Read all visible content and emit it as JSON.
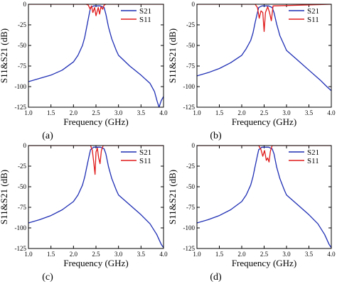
{
  "chart_data": [
    {
      "type": "line",
      "panel_label": "(a)",
      "xlabel": "Frequency (GHz)",
      "ylabel": "S11&S21 (dB)",
      "xlim": [
        1.0,
        4.0
      ],
      "ylim": [
        -125,
        0
      ],
      "x_ticks": [
        "1.0",
        "1.5",
        "2.0",
        "2.5",
        "3.0",
        "3.5",
        "4.0"
      ],
      "y_ticks": [
        "0",
        "-25",
        "-50",
        "-75",
        "-100",
        "-125"
      ],
      "legend": "top-right",
      "series": [
        {
          "name": "S21",
          "color": "#1f2fb4",
          "x": [
            1.0,
            1.25,
            1.5,
            1.75,
            2.0,
            2.1,
            2.2,
            2.25,
            2.3,
            2.35,
            2.38,
            2.45,
            2.6,
            2.68,
            2.72,
            2.78,
            2.85,
            2.95,
            3.0,
            3.25,
            3.5,
            3.7,
            3.8,
            3.86,
            3.9,
            3.95,
            4.0
          ],
          "y": [
            -94,
            -90,
            -86,
            -80,
            -70,
            -62,
            -50,
            -40,
            -26,
            -12,
            -4,
            -2,
            -2,
            -4,
            -12,
            -28,
            -42,
            -56,
            -62,
            -75,
            -86,
            -96,
            -106,
            -118,
            -125,
            -117,
            -112
          ]
        },
        {
          "name": "S11",
          "color": "#e01b1b",
          "x": [
            1.0,
            2.28,
            2.33,
            2.37,
            2.4,
            2.43,
            2.47,
            2.5,
            2.55,
            2.58,
            2.61,
            2.65,
            2.68,
            2.72,
            4.0
          ],
          "y": [
            0,
            0,
            -1,
            -6,
            -2,
            -10,
            -4,
            -14,
            -4,
            -12,
            -3,
            -6,
            -1,
            0,
            0
          ]
        }
      ]
    },
    {
      "type": "line",
      "panel_label": "(b)",
      "xlabel": "Frequency (GHz)",
      "ylabel": "S11&S21 (dB)",
      "xlim": [
        1.0,
        4.0
      ],
      "ylim": [
        -125,
        0
      ],
      "x_ticks": [
        "1.0",
        "1.5",
        "2.0",
        "2.5",
        "3.0",
        "3.5",
        "4.0"
      ],
      "y_ticks": [
        "0",
        "-25",
        "-50",
        "-75",
        "-100",
        "-125"
      ],
      "legend": "top-right",
      "series": [
        {
          "name": "S21",
          "color": "#1f2fb4",
          "x": [
            1.0,
            1.25,
            1.5,
            1.75,
            2.0,
            2.1,
            2.2,
            2.25,
            2.3,
            2.35,
            2.38,
            2.45,
            2.6,
            2.68,
            2.72,
            2.78,
            2.85,
            2.95,
            3.0,
            3.25,
            3.5,
            3.75,
            3.9,
            4.0
          ],
          "y": [
            -87,
            -83,
            -78,
            -71,
            -62,
            -54,
            -44,
            -35,
            -22,
            -10,
            -4,
            -2,
            -2,
            -4,
            -10,
            -24,
            -38,
            -50,
            -56,
            -68,
            -80,
            -92,
            -100,
            -105
          ]
        },
        {
          "name": "S11",
          "color": "#e01b1b",
          "x": [
            1.0,
            2.3,
            2.35,
            2.39,
            2.43,
            2.47,
            2.5,
            2.53,
            2.58,
            2.62,
            2.66,
            2.7,
            4.0
          ],
          "y": [
            0,
            0,
            -4,
            -17,
            -8,
            -10,
            -33,
            -10,
            -3,
            -10,
            -20,
            -2,
            0
          ]
        }
      ]
    },
    {
      "type": "line",
      "panel_label": "(c)",
      "xlabel": "Frequency (GHz)",
      "ylabel": "S11&S21 (dB)",
      "xlim": [
        1.0,
        4.0
      ],
      "ylim": [
        -125,
        0
      ],
      "x_ticks": [
        "1.0",
        "1.5",
        "2.0",
        "2.5",
        "3.0",
        "3.5",
        "4.0"
      ],
      "y_ticks": [
        "0",
        "-25",
        "-50",
        "-75",
        "-100",
        "-125"
      ],
      "legend": "top-right",
      "series": [
        {
          "name": "S21",
          "color": "#1f2fb4",
          "x": [
            1.0,
            1.25,
            1.5,
            1.75,
            2.0,
            2.1,
            2.2,
            2.25,
            2.3,
            2.35,
            2.38,
            2.45,
            2.6,
            2.68,
            2.72,
            2.78,
            2.85,
            2.95,
            3.0,
            3.25,
            3.5,
            3.7,
            3.85,
            3.95,
            4.0
          ],
          "y": [
            -94,
            -90,
            -85,
            -78,
            -68,
            -60,
            -48,
            -38,
            -25,
            -12,
            -5,
            -2,
            -2,
            -4,
            -10,
            -26,
            -40,
            -54,
            -60,
            -72,
            -84,
            -95,
            -108,
            -120,
            -124
          ]
        },
        {
          "name": "S11",
          "color": "#e01b1b",
          "x": [
            1.0,
            2.38,
            2.42,
            2.45,
            2.48,
            2.5,
            2.53,
            2.56,
            2.59,
            2.62,
            2.66,
            4.0
          ],
          "y": [
            0,
            0,
            -6,
            -20,
            -35,
            -8,
            -3,
            -15,
            -22,
            -6,
            0,
            0
          ]
        }
      ]
    },
    {
      "type": "line",
      "panel_label": "(d)",
      "xlabel": "Frequency (GHz)",
      "ylabel": "S11&S21 (dB)",
      "xlim": [
        1.0,
        4.0
      ],
      "ylim": [
        -125,
        0
      ],
      "x_ticks": [
        "1.0",
        "1.5",
        "2.0",
        "2.5",
        "3.0",
        "3.5",
        "4.0"
      ],
      "y_ticks": [
        "0",
        "-25",
        "-50",
        "-75",
        "-100",
        "-125"
      ],
      "legend": "top-right",
      "series": [
        {
          "name": "S21",
          "color": "#1f2fb4",
          "x": [
            1.0,
            1.25,
            1.5,
            1.75,
            2.0,
            2.1,
            2.2,
            2.25,
            2.3,
            2.35,
            2.38,
            2.45,
            2.6,
            2.68,
            2.72,
            2.78,
            2.85,
            2.95,
            3.0,
            3.25,
            3.5,
            3.7,
            3.85,
            3.95,
            4.0
          ],
          "y": [
            -94,
            -90,
            -85,
            -78,
            -68,
            -60,
            -48,
            -38,
            -25,
            -12,
            -5,
            -2,
            -2,
            -4,
            -10,
            -26,
            -40,
            -54,
            -60,
            -72,
            -84,
            -95,
            -108,
            -120,
            -124
          ]
        },
        {
          "name": "S11",
          "color": "#e01b1b",
          "x": [
            1.0,
            2.38,
            2.43,
            2.47,
            2.51,
            2.55,
            2.58,
            2.61,
            2.64,
            2.68,
            4.0
          ],
          "y": [
            0,
            0,
            -5,
            -13,
            -6,
            -18,
            -15,
            -20,
            -7,
            0,
            0
          ]
        }
      ]
    }
  ]
}
